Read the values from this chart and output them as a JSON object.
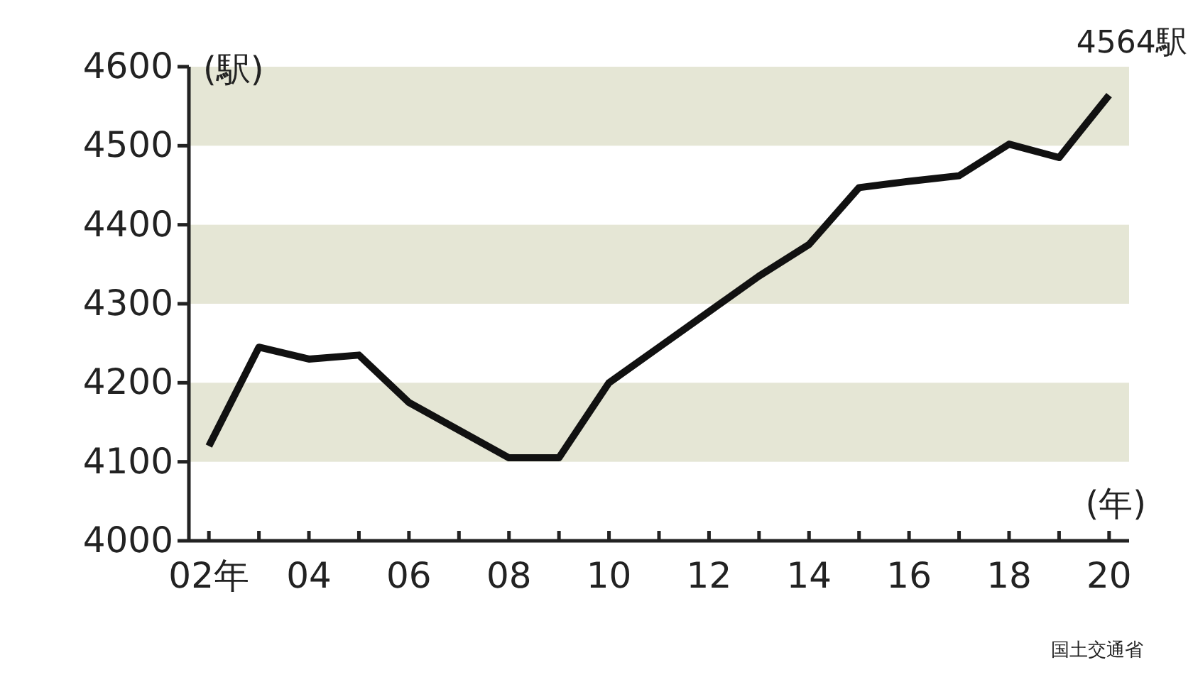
{
  "chart_data": {
    "type": "line",
    "ylabel": "(駅)",
    "xlabel": "(年)",
    "x": [
      2,
      3,
      4,
      5,
      6,
      7,
      8,
      9,
      10,
      11,
      12,
      13,
      14,
      15,
      16,
      17,
      18,
      19,
      20
    ],
    "series": [
      {
        "color": "#111111",
        "values": [
          4120,
          4245,
          4230,
          4235,
          4175,
          4140,
          4105,
          4105,
          4200,
          4245,
          4290,
          4335,
          4375,
          4447,
          4455,
          4462,
          4502,
          4485,
          4564
        ]
      }
    ],
    "xlim": [
      1.6,
      20.4
    ],
    "ylim": [
      4000,
      4600
    ],
    "xticks": [
      {
        "value": 2,
        "label": "02年"
      },
      {
        "value": 3,
        "label": null
      },
      {
        "value": 4,
        "label": "04"
      },
      {
        "value": 5,
        "label": null
      },
      {
        "value": 6,
        "label": "06"
      },
      {
        "value": 7,
        "label": null
      },
      {
        "value": 8,
        "label": "08"
      },
      {
        "value": 9,
        "label": null
      },
      {
        "value": 10,
        "label": "10"
      },
      {
        "value": 11,
        "label": null
      },
      {
        "value": 12,
        "label": "12"
      },
      {
        "value": 13,
        "label": null
      },
      {
        "value": 14,
        "label": "14"
      },
      {
        "value": 15,
        "label": null
      },
      {
        "value": 16,
        "label": "16"
      },
      {
        "value": 17,
        "label": null
      },
      {
        "value": 18,
        "label": "18"
      },
      {
        "value": 19,
        "label": null
      },
      {
        "value": 20,
        "label": "20"
      }
    ],
    "yticks": [
      4000,
      4100,
      4200,
      4300,
      4400,
      4500,
      4600
    ],
    "bands": [
      {
        "axis": "y",
        "from": 4100,
        "to": 4200,
        "color": "#e5e6d5"
      },
      {
        "axis": "y",
        "from": 4300,
        "to": 4400,
        "color": "#e5e6d5"
      },
      {
        "axis": "y",
        "from": 4500,
        "to": 4600,
        "color": "#e5e6d5"
      }
    ],
    "annotations": [
      {
        "text": "4564駅",
        "x": 20,
        "y": 4564
      },
      "国土交通省"
    ],
    "grid": false,
    "marker": "none",
    "line_style": "solid"
  }
}
